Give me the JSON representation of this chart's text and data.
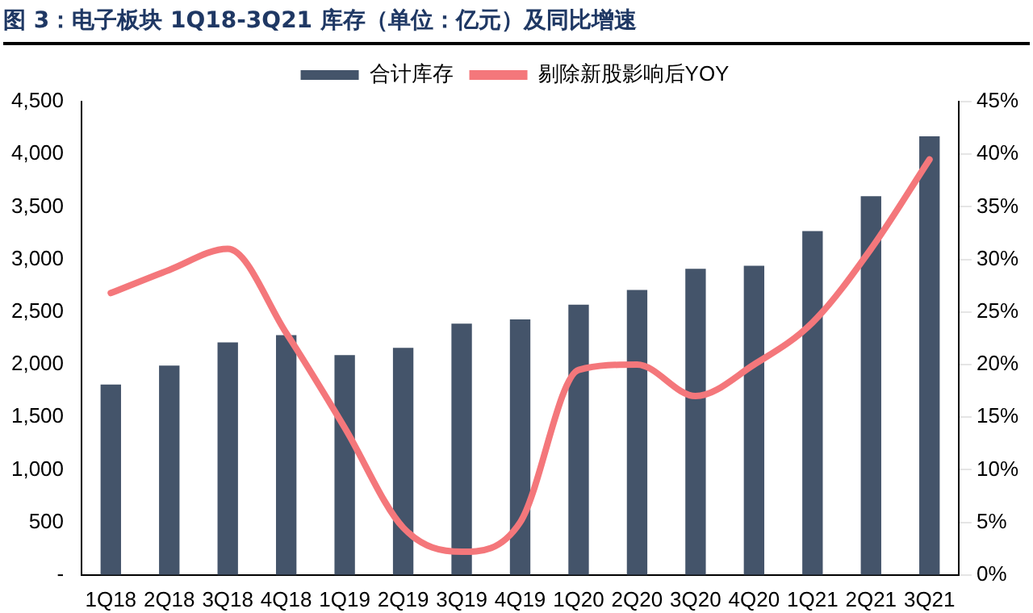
{
  "chart_data": {
    "type": "bar",
    "title": "图 3：电子板块 1Q18-3Q21 库存（单位：亿元）及同比增速",
    "categories": [
      "1Q18",
      "2Q18",
      "3Q18",
      "4Q18",
      "1Q19",
      "2Q19",
      "3Q19",
      "4Q19",
      "1Q20",
      "2Q20",
      "3Q20",
      "4Q20",
      "1Q21",
      "2Q21",
      "3Q21"
    ],
    "series": [
      {
        "name": "合计库存",
        "color": "#44546a",
        "values": [
          1810,
          1990,
          2210,
          2280,
          2090,
          2160,
          2390,
          2430,
          2570,
          2710,
          2910,
          2940,
          3270,
          3600,
          4170
        ]
      },
      {
        "name": "剔除新股影响后YOY",
        "type": "line",
        "axis": "y2",
        "color": "#f4777b",
        "values": [
          26.8,
          29,
          31,
          23,
          14,
          4.5,
          2.2,
          5,
          19.5,
          20,
          17,
          20,
          24,
          31,
          39.5
        ]
      }
    ],
    "ylim": [
      0,
      4500
    ],
    "yticks": [
      {
        "value": 0,
        "label": "-"
      },
      {
        "value": 500,
        "label": "500"
      },
      {
        "value": 1000,
        "label": "1,000"
      },
      {
        "value": 1500,
        "label": "1,500"
      },
      {
        "value": 2000,
        "label": "2,000"
      },
      {
        "value": 2500,
        "label": "2,500"
      },
      {
        "value": 3000,
        "label": "3,000"
      },
      {
        "value": 3500,
        "label": "3,500"
      },
      {
        "value": 4000,
        "label": "4,000"
      },
      {
        "value": 4500,
        "label": "4,500"
      }
    ],
    "y2lim": [
      0,
      45
    ],
    "y2ticks": [
      {
        "value": 0,
        "label": "0%"
      },
      {
        "value": 5,
        "label": "5%"
      },
      {
        "value": 10,
        "label": "10%"
      },
      {
        "value": 15,
        "label": "15%"
      },
      {
        "value": 20,
        "label": "20%"
      },
      {
        "value": 25,
        "label": "25%"
      },
      {
        "value": 30,
        "label": "30%"
      },
      {
        "value": 35,
        "label": "35%"
      },
      {
        "value": 40,
        "label": "40%"
      },
      {
        "value": 45,
        "label": "45%"
      }
    ],
    "legend": "top",
    "grid": false,
    "marker": "none",
    "line_style": "solid"
  }
}
